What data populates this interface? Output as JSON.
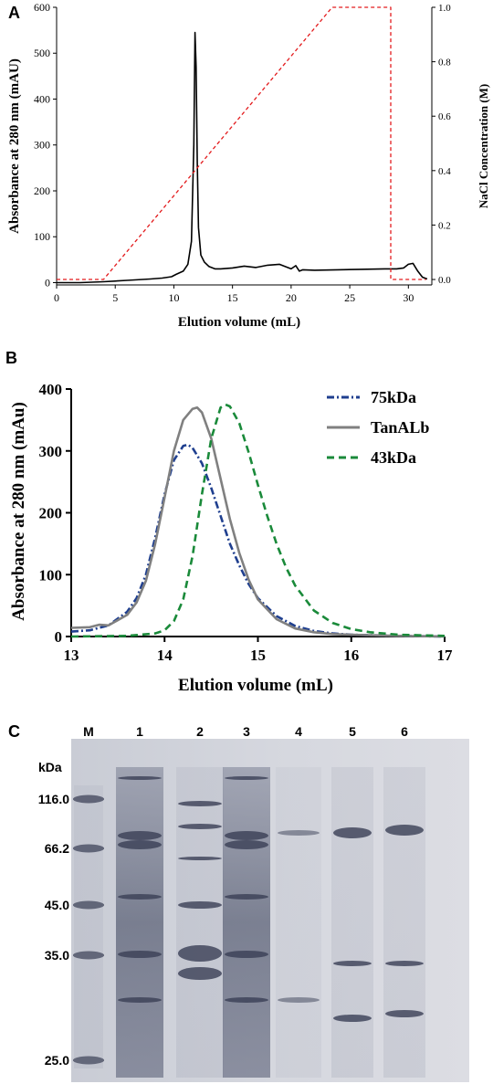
{
  "chart_data": [
    {
      "panel": "A",
      "type": "line",
      "xlabel": "Elution volume (mL)",
      "ylabel": "Absorbance at 280 nm (mAU)",
      "y2label": "NaCl Concentration (M)",
      "xlim": [
        0,
        32
      ],
      "ylim": [
        -5,
        600
      ],
      "y2lim": [
        -0.02,
        1.0
      ],
      "xticks": [
        "0",
        "5",
        "10",
        "15",
        "20",
        "25",
        "30"
      ],
      "yticks": [
        "0",
        "100",
        "200",
        "300",
        "400",
        "500",
        "600"
      ],
      "y2ticks": [
        "0.0",
        "0.2",
        "0.4",
        "0.6",
        "0.8",
        "1.0"
      ],
      "series": [
        {
          "color": "#000000",
          "style": "solid",
          "axis": "left",
          "x": [
            0,
            2,
            4,
            6,
            8,
            9,
            9.8,
            10.2,
            10.8,
            11.2,
            11.5,
            11.7,
            11.8,
            11.9,
            12.0,
            12.1,
            12.3,
            12.6,
            13.0,
            13.5,
            14.0,
            15.0,
            16.0,
            17.0,
            18.0,
            19.0,
            20.0,
            20.4,
            20.7,
            21.0,
            22,
            24,
            26,
            28,
            29,
            29.6,
            30.0,
            30.4,
            30.8,
            31.2,
            31.6
          ],
          "y": [
            0,
            0,
            2,
            5,
            8,
            10,
            13,
            18,
            25,
            40,
            90,
            300,
            545,
            470,
            260,
            120,
            60,
            45,
            35,
            30,
            30,
            32,
            36,
            33,
            38,
            40,
            30,
            37,
            25,
            28,
            27,
            28,
            29,
            30,
            30,
            32,
            40,
            42,
            25,
            12,
            8
          ]
        },
        {
          "color": "#e31a1c",
          "style": "dashed",
          "axis": "right",
          "x": [
            0,
            4,
            23.5,
            28.5,
            28.5,
            31.5
          ],
          "y": [
            0,
            0,
            1.0,
            1.0,
            0,
            0
          ]
        }
      ]
    },
    {
      "panel": "B",
      "type": "line",
      "xlabel": "Elution volume (mL)",
      "ylabel": "Absorbance at 280 nm (mAu)",
      "xlim": [
        13,
        17
      ],
      "ylim": [
        0,
        400
      ],
      "xticks": [
        "13",
        "14",
        "15",
        "16",
        "17"
      ],
      "yticks": [
        "0",
        "100",
        "200",
        "300",
        "400"
      ],
      "legend": "top-right",
      "series": [
        {
          "name": "75kDa",
          "color": "#1f3f8f",
          "style": "dashdot",
          "x": [
            13,
            13.2,
            13.4,
            13.6,
            13.7,
            13.8,
            13.9,
            14.0,
            14.1,
            14.2,
            14.25,
            14.3,
            14.4,
            14.5,
            14.6,
            14.7,
            14.8,
            14.9,
            15.0,
            15.2,
            15.4,
            15.6,
            15.8,
            16.0,
            16.5,
            17.0
          ],
          "y": [
            8,
            10,
            18,
            40,
            62,
            100,
            160,
            230,
            285,
            308,
            310,
            305,
            280,
            240,
            195,
            150,
            115,
            85,
            62,
            33,
            17,
            9,
            5,
            3,
            1,
            0
          ]
        },
        {
          "name": "TanALb",
          "color": "#808080",
          "style": "solid",
          "x": [
            13,
            13.2,
            13.3,
            13.4,
            13.6,
            13.7,
            13.8,
            13.9,
            14.0,
            14.1,
            14.2,
            14.3,
            14.35,
            14.4,
            14.5,
            14.6,
            14.7,
            14.8,
            14.9,
            15.0,
            15.2,
            15.4,
            15.6,
            15.8,
            16.0,
            16.5,
            17.0
          ],
          "y": [
            14,
            15,
            19,
            18,
            35,
            55,
            90,
            150,
            225,
            300,
            350,
            368,
            370,
            362,
            320,
            255,
            190,
            135,
            92,
            60,
            28,
            13,
            7,
            4,
            3,
            1,
            0
          ]
        },
        {
          "name": "43kDa",
          "color": "#1a8a3a",
          "style": "dashed",
          "x": [
            13,
            13.6,
            13.9,
            14.0,
            14.1,
            14.2,
            14.3,
            14.4,
            14.5,
            14.6,
            14.65,
            14.7,
            14.8,
            14.9,
            15.0,
            15.1,
            15.2,
            15.3,
            15.4,
            15.6,
            15.8,
            16.0,
            16.2,
            16.5,
            17.0
          ],
          "y": [
            0,
            1,
            5,
            10,
            25,
            60,
            130,
            230,
            320,
            370,
            375,
            372,
            345,
            298,
            245,
            195,
            150,
            112,
            82,
            42,
            22,
            12,
            7,
            3,
            1
          ]
        }
      ]
    }
  ],
  "panel_labels": {
    "a": "A",
    "b": "B",
    "c": "C"
  },
  "gel": {
    "lane_labels": [
      "M",
      "1",
      "2",
      "3",
      "4",
      "5",
      "6"
    ],
    "unit_label": "kDa",
    "markers": [
      "116.0",
      "66.2",
      "45.0",
      "35.0",
      "25.0"
    ]
  }
}
